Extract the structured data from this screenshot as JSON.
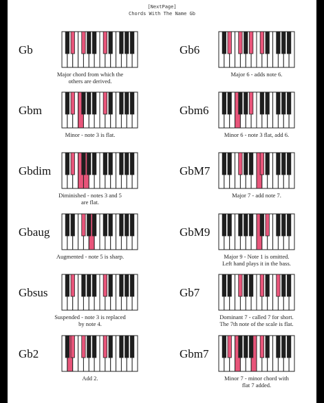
{
  "header": {
    "nav_label": "[NextPage]",
    "title": "Chords With The Name Gb"
  },
  "colors": {
    "highlight": "#e8557a",
    "white_key": "#ffffff",
    "black_key": "#1e1e1e",
    "outline": "#222222"
  },
  "left_column": [
    {
      "name": "Gb",
      "desc": [
        "Major chord from which the",
        "others are derived."
      ],
      "black": [
        1,
        2,
        5
      ],
      "white": []
    },
    {
      "name": "Gbm",
      "desc": [
        "Minor - note 3 is flat."
      ],
      "black": [
        1,
        5
      ],
      "white": [
        3
      ]
    },
    {
      "name": "Gbdim",
      "desc": [
        "Diminished - notes 3 and 5",
        "are flat."
      ],
      "black": [
        1
      ],
      "white": [
        3,
        4
      ]
    },
    {
      "name": "Gbaug",
      "desc": [
        "Augmented - note 5 is sharp."
      ],
      "black": [
        2
      ],
      "white": [
        5
      ]
    },
    {
      "name": "Gbsus",
      "desc": [
        "Suspended - note 3 is replaced",
        "by note 4."
      ],
      "black": [
        1,
        5
      ],
      "white": []
    },
    {
      "name": "Gb2",
      "desc": [
        "Add 2."
      ],
      "black": [
        1,
        2,
        5
      ],
      "white": [
        1
      ]
    }
  ],
  "right_column": [
    {
      "name": "Gb6",
      "desc": [
        "Major 6 - adds note 6."
      ],
      "black": [
        1,
        2,
        4,
        5
      ],
      "white": []
    },
    {
      "name": "Gbm6",
      "desc": [
        "Minor 6 - note 3 flat, add 6."
      ],
      "black": [
        4
      ],
      "white": [
        3
      ]
    },
    {
      "name": "GbM7",
      "desc": [
        "Major 7 - add note 7."
      ],
      "black": [
        2,
        5
      ],
      "white": [
        7
      ]
    },
    {
      "name": "GbM9",
      "desc": [
        "Major 9 - Note 1 is omitted.",
        "Left hand plays it in the bass."
      ],
      "black": [
        6
      ],
      "white": [
        7
      ]
    },
    {
      "name": "Gb7",
      "desc": [
        "Dominant 7 - called 7 for short.",
        "The 7th note of the scale is flat."
      ],
      "black": [
        2,
        5,
        7
      ],
      "white": []
    },
    {
      "name": "Gbm7",
      "desc": [
        "Minor 7 - minor chord with",
        "flat 7 added."
      ],
      "black": [
        1,
        5
      ],
      "white": [
        3,
        6
      ]
    }
  ]
}
